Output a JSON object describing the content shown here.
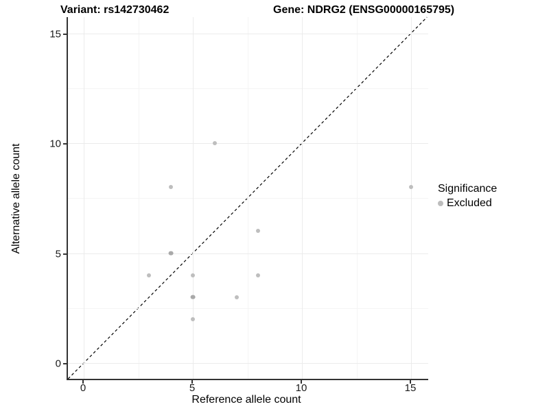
{
  "titles": {
    "variant": "Variant: rs142730462",
    "gene": "Gene: NDRG2 (ENSG00000165795)"
  },
  "chart_data": {
    "type": "scatter",
    "title_left": "Variant: rs142730462",
    "title_right": "Gene: NDRG2 (ENSG00000165795)",
    "xlabel": "Reference allele count",
    "ylabel": "Alternative allele count",
    "xlim": [
      -0.75,
      15.75
    ],
    "ylim": [
      -0.75,
      15.75
    ],
    "x_ticks": [
      0,
      5,
      10,
      15
    ],
    "y_ticks": [
      0,
      5,
      10,
      15
    ],
    "x_minor_gridlines": [
      2.5,
      7.5,
      12.5
    ],
    "y_minor_gridlines": [
      2.5,
      7.5,
      12.5
    ],
    "grid": "major and minor, light gray on white",
    "legend_position": "right",
    "series": [
      {
        "name": "Excluded",
        "color": "#bebebe",
        "points": [
          {
            "x": 3,
            "y": 4
          },
          {
            "x": 4,
            "y": 5,
            "overplotted": true
          },
          {
            "x": 4,
            "y": 8
          },
          {
            "x": 5,
            "y": 2
          },
          {
            "x": 5,
            "y": 3,
            "overplotted": true
          },
          {
            "x": 5,
            "y": 4
          },
          {
            "x": 6,
            "y": 10
          },
          {
            "x": 7,
            "y": 3
          },
          {
            "x": 8,
            "y": 4
          },
          {
            "x": 8,
            "y": 6
          },
          {
            "x": 15,
            "y": 8
          }
        ]
      }
    ],
    "identity_line": {
      "slope": 1,
      "intercept": 0,
      "style": "dashed",
      "color": "#000000"
    }
  },
  "legend": {
    "title": "Significance",
    "items": [
      {
        "label": "Excluded",
        "color": "#bdbdbd"
      }
    ]
  },
  "colors": {
    "point": "#bebebe",
    "point_overplotted": "#a9a9a9",
    "grid_major": "#ebebeb",
    "grid_minor": "#f4f4f4",
    "axis_line": "#333333",
    "identity_line": "#000000"
  }
}
